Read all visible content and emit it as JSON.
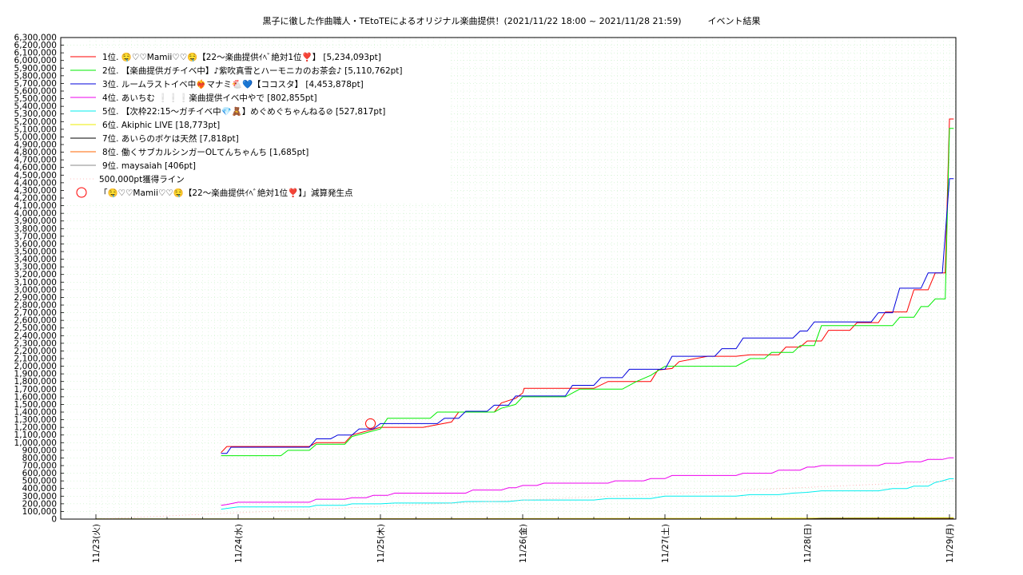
{
  "title": "黒子に徹した作曲職人・TEtoTEによるオリジナル楽曲提供！(2021/11/22 18:00 ~ 2021/11/28 21:59)　　　イベント結果",
  "chart_data": {
    "type": "line",
    "grid": true,
    "legend_position": "top-left",
    "x_axis": {
      "unit": "day",
      "range": [
        0,
        6.03
      ],
      "ticks": [
        {
          "x": 0,
          "label": "11/23(火)"
        },
        {
          "x": 1,
          "label": "11/24(水)"
        },
        {
          "x": 2,
          "label": "11/25(木)"
        },
        {
          "x": 3,
          "label": "11/26(金)"
        },
        {
          "x": 4,
          "label": "11/27(土)"
        },
        {
          "x": 5,
          "label": "11/28(日)"
        },
        {
          "x": 6,
          "label": "11/29(月)"
        }
      ]
    },
    "y_axis": {
      "range": [
        0,
        6300000
      ],
      "tick_step": 100000
    },
    "series": [
      {
        "name": "1位. 🤤♡♡Mamii♡♡🤤【22〜楽曲提供ｲﾍﾞ絶対1位❣️】 [5,234,093pt]",
        "color": "#ff0000",
        "points": [
          [
            0.88,
            870000
          ],
          [
            0.92,
            950000
          ],
          [
            1.5,
            950000
          ],
          [
            1.55,
            1000000
          ],
          [
            1.75,
            1000000
          ],
          [
            1.8,
            1100000
          ],
          [
            2.0,
            1200000
          ],
          [
            2.3,
            1200000
          ],
          [
            2.5,
            1270000
          ],
          [
            2.55,
            1400000
          ],
          [
            2.8,
            1400000
          ],
          [
            2.85,
            1520000
          ],
          [
            2.95,
            1580000
          ],
          [
            3.0,
            1650000
          ],
          [
            3.01,
            1710000
          ],
          [
            3.5,
            1710000
          ],
          [
            3.6,
            1800000
          ],
          [
            3.9,
            1800000
          ],
          [
            3.95,
            1950000
          ],
          [
            4.05,
            1970000
          ],
          [
            4.1,
            2060000
          ],
          [
            4.3,
            2130000
          ],
          [
            4.5,
            2130000
          ],
          [
            4.6,
            2150000
          ],
          [
            4.8,
            2150000
          ],
          [
            4.85,
            2250000
          ],
          [
            4.95,
            2250000
          ],
          [
            5.0,
            2330000
          ],
          [
            5.1,
            2330000
          ],
          [
            5.15,
            2470000
          ],
          [
            5.3,
            2470000
          ],
          [
            5.35,
            2570000
          ],
          [
            5.5,
            2570000
          ],
          [
            5.55,
            2710000
          ],
          [
            5.7,
            2710000
          ],
          [
            5.75,
            3000000
          ],
          [
            5.85,
            3000000
          ],
          [
            5.9,
            3220000
          ],
          [
            5.97,
            3220000
          ],
          [
            6.0,
            5234093
          ],
          [
            6.03,
            5234093
          ]
        ]
      },
      {
        "name": "2位. 【楽曲提供ガチイベ中】♪紫吹真雪とハーモニカのお茶会♪ [5,110,762pt]",
        "color": "#00ee00",
        "points": [
          [
            0.88,
            830000
          ],
          [
            1.3,
            830000
          ],
          [
            1.35,
            900000
          ],
          [
            1.5,
            900000
          ],
          [
            1.55,
            980000
          ],
          [
            1.75,
            980000
          ],
          [
            1.8,
            1080000
          ],
          [
            2.0,
            1180000
          ],
          [
            2.05,
            1320000
          ],
          [
            2.35,
            1320000
          ],
          [
            2.4,
            1400000
          ],
          [
            2.8,
            1400000
          ],
          [
            2.85,
            1450000
          ],
          [
            2.95,
            1500000
          ],
          [
            3.0,
            1600000
          ],
          [
            3.3,
            1600000
          ],
          [
            3.4,
            1700000
          ],
          [
            3.7,
            1700000
          ],
          [
            3.8,
            1800000
          ],
          [
            3.9,
            1880000
          ],
          [
            4.0,
            2000000
          ],
          [
            4.5,
            2000000
          ],
          [
            4.6,
            2100000
          ],
          [
            4.7,
            2100000
          ],
          [
            4.75,
            2180000
          ],
          [
            4.9,
            2180000
          ],
          [
            4.95,
            2270000
          ],
          [
            5.05,
            2270000
          ],
          [
            5.1,
            2530000
          ],
          [
            5.35,
            2530000
          ],
          [
            5.6,
            2530000
          ],
          [
            5.65,
            2640000
          ],
          [
            5.75,
            2640000
          ],
          [
            5.8,
            2780000
          ],
          [
            5.85,
            2780000
          ],
          [
            5.9,
            2880000
          ],
          [
            5.97,
            2880000
          ],
          [
            6.0,
            5110762
          ],
          [
            6.03,
            5110762
          ]
        ]
      },
      {
        "name": "3位. ルームラストイベ中❤️‍🔥マナミ🐔💙【ココスタ】 [4,453,878pt]",
        "color": "#0000dd",
        "points": [
          [
            0.88,
            860000
          ],
          [
            0.92,
            860000
          ],
          [
            0.95,
            940000
          ],
          [
            1.5,
            940000
          ],
          [
            1.55,
            1050000
          ],
          [
            1.65,
            1050000
          ],
          [
            1.7,
            1100000
          ],
          [
            1.8,
            1100000
          ],
          [
            1.85,
            1180000
          ],
          [
            1.95,
            1180000
          ],
          [
            2.0,
            1250000
          ],
          [
            2.4,
            1250000
          ],
          [
            2.45,
            1320000
          ],
          [
            2.55,
            1320000
          ],
          [
            2.6,
            1410000
          ],
          [
            2.75,
            1410000
          ],
          [
            2.8,
            1490000
          ],
          [
            2.9,
            1490000
          ],
          [
            2.95,
            1610000
          ],
          [
            3.3,
            1610000
          ],
          [
            3.35,
            1750000
          ],
          [
            3.5,
            1750000
          ],
          [
            3.55,
            1850000
          ],
          [
            3.7,
            1850000
          ],
          [
            3.75,
            1960000
          ],
          [
            4.0,
            1960000
          ],
          [
            4.05,
            2130000
          ],
          [
            4.35,
            2130000
          ],
          [
            4.4,
            2230000
          ],
          [
            4.5,
            2230000
          ],
          [
            4.55,
            2370000
          ],
          [
            4.9,
            2370000
          ],
          [
            4.95,
            2460000
          ],
          [
            5.0,
            2460000
          ],
          [
            5.05,
            2580000
          ],
          [
            5.45,
            2580000
          ],
          [
            5.5,
            2700000
          ],
          [
            5.6,
            2700000
          ],
          [
            5.65,
            3020000
          ],
          [
            5.8,
            3020000
          ],
          [
            5.85,
            3220000
          ],
          [
            5.95,
            3220000
          ],
          [
            6.0,
            4453878
          ],
          [
            6.03,
            4453878
          ]
        ]
      },
      {
        "name": "4位. あいちむ ❕❕❕楽曲提供イベ中やで [802,855pt]",
        "color": "#ee00ee",
        "points": [
          [
            0.88,
            180000
          ],
          [
            0.92,
            190000
          ],
          [
            1.0,
            220000
          ],
          [
            1.5,
            220000
          ],
          [
            1.55,
            260000
          ],
          [
            1.75,
            260000
          ],
          [
            1.8,
            280000
          ],
          [
            1.9,
            280000
          ],
          [
            1.95,
            310000
          ],
          [
            2.05,
            310000
          ],
          [
            2.1,
            340000
          ],
          [
            2.6,
            340000
          ],
          [
            2.65,
            380000
          ],
          [
            2.85,
            380000
          ],
          [
            2.9,
            410000
          ],
          [
            2.95,
            410000
          ],
          [
            3.0,
            440000
          ],
          [
            3.1,
            440000
          ],
          [
            3.15,
            470000
          ],
          [
            3.6,
            470000
          ],
          [
            3.65,
            500000
          ],
          [
            3.85,
            500000
          ],
          [
            3.9,
            530000
          ],
          [
            4.0,
            530000
          ],
          [
            4.05,
            570000
          ],
          [
            4.5,
            570000
          ],
          [
            4.55,
            600000
          ],
          [
            4.75,
            600000
          ],
          [
            4.8,
            640000
          ],
          [
            4.95,
            640000
          ],
          [
            5.0,
            680000
          ],
          [
            5.05,
            680000
          ],
          [
            5.1,
            700000
          ],
          [
            5.5,
            700000
          ],
          [
            5.55,
            730000
          ],
          [
            5.65,
            730000
          ],
          [
            5.7,
            750000
          ],
          [
            5.8,
            750000
          ],
          [
            5.85,
            780000
          ],
          [
            5.95,
            780000
          ],
          [
            6.0,
            802855
          ],
          [
            6.03,
            802855
          ]
        ]
      },
      {
        "name": "5位. 【次枠22:15〜ガチイベ中💎🧸】めぐめぐちゃんねる⊘ [527,817pt]",
        "color": "#00eeee",
        "points": [
          [
            0.88,
            130000
          ],
          [
            0.92,
            140000
          ],
          [
            1.0,
            160000
          ],
          [
            1.5,
            160000
          ],
          [
            1.55,
            180000
          ],
          [
            1.75,
            180000
          ],
          [
            1.8,
            200000
          ],
          [
            2.0,
            200000
          ],
          [
            2.1,
            210000
          ],
          [
            2.5,
            210000
          ],
          [
            2.6,
            230000
          ],
          [
            2.9,
            230000
          ],
          [
            3.0,
            250000
          ],
          [
            3.5,
            250000
          ],
          [
            3.6,
            270000
          ],
          [
            3.9,
            270000
          ],
          [
            4.0,
            300000
          ],
          [
            4.5,
            300000
          ],
          [
            4.6,
            320000
          ],
          [
            4.8,
            320000
          ],
          [
            4.9,
            340000
          ],
          [
            5.0,
            350000
          ],
          [
            5.1,
            370000
          ],
          [
            5.5,
            370000
          ],
          [
            5.6,
            400000
          ],
          [
            5.7,
            400000
          ],
          [
            5.75,
            430000
          ],
          [
            5.85,
            430000
          ],
          [
            5.9,
            480000
          ],
          [
            5.95,
            500000
          ],
          [
            6.0,
            527817
          ],
          [
            6.03,
            527817
          ]
        ]
      },
      {
        "name": "6位. Akiphic LIVE [18,773pt]",
        "color": "#eeee00",
        "points": [
          [
            0,
            2000
          ],
          [
            3,
            6000
          ],
          [
            5,
            12000
          ],
          [
            6.03,
            18773
          ]
        ]
      },
      {
        "name": "7位. あいらのボケは天然 [7,818pt]",
        "color": "#000000",
        "points": [
          [
            0,
            1000
          ],
          [
            5,
            2000
          ],
          [
            5.1,
            7818
          ],
          [
            6.03,
            7818
          ]
        ]
      },
      {
        "name": "8位. 働くサブカルシンガーOLてんちゃんち [1,685pt]",
        "color": "#ff6600",
        "points": [
          [
            0,
            500
          ],
          [
            6.03,
            1685
          ]
        ]
      },
      {
        "name": "9位. maysaiah [406pt]",
        "color": "#888888",
        "points": [
          [
            0,
            100
          ],
          [
            6.03,
            406
          ]
        ]
      },
      {
        "name": "500,000pt獲得ライン",
        "color": "#ffaaaa",
        "dashed": true,
        "points": [
          [
            0,
            0
          ],
          [
            6.03,
            500000
          ]
        ]
      }
    ],
    "markers": [
      {
        "name": "「🤤♡♡Mamii♡♡🤤【22〜楽曲提供ｲﾍﾞ絶対1位❣️】」減算発生点",
        "color": "#ff0000",
        "x": 1.93,
        "y": 1250000
      }
    ]
  }
}
